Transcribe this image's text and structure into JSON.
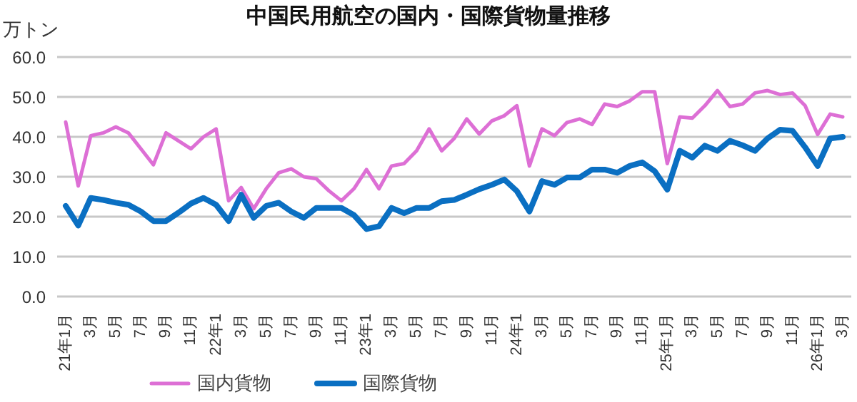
{
  "chart_data": {
    "type": "line",
    "title": "中国民用航空の国内・国際貨物量推移",
    "ylabel": "万トン",
    "categories": [
      "21年1月",
      null,
      "3月",
      null,
      "5月",
      null,
      "7月",
      null,
      "9月",
      null,
      "11月",
      null,
      "22年1",
      null,
      "3月",
      null,
      "5月",
      null,
      "7月",
      null,
      "9月",
      null,
      "11月",
      null,
      "23年1",
      null,
      "3月",
      null,
      "5月",
      null,
      "7月",
      null,
      "9月",
      null,
      "11月",
      null,
      "24年1",
      null,
      "3月",
      null,
      "5月",
      null,
      "7月",
      null,
      "9月",
      null,
      "11月",
      null,
      "25年1月",
      null,
      "3月",
      null,
      "5月",
      null,
      "7月",
      null,
      "9月",
      null,
      "11月",
      null,
      "26年1月",
      null,
      "3月"
    ],
    "series": [
      {
        "name": "国内貨物",
        "color": "#dd6fd5",
        "values": [
          43.7,
          27.7,
          40.3,
          41,
          42.5,
          41,
          37,
          33,
          41,
          39,
          37,
          40,
          42,
          24,
          27.3,
          22,
          27,
          31,
          32,
          30,
          29.5,
          26.5,
          24,
          27,
          31.8,
          27,
          32.7,
          33.3,
          36.5,
          42,
          36.5,
          39.6,
          44.5,
          40.7,
          44,
          45.3,
          47.8,
          32.7,
          42,
          40.3,
          43.6,
          44.5,
          43.1,
          48.2,
          47.6,
          49,
          51.3,
          51.3,
          33.3,
          45,
          44.7,
          47.8,
          51.6,
          47.6,
          48.2,
          51,
          51.6,
          50.6,
          51,
          47.8,
          40.6,
          45.7,
          45
        ]
      },
      {
        "name": "国際貨物",
        "color": "#0a6fc2",
        "values": [
          22.7,
          17.8,
          24.7,
          24.2,
          23.5,
          23,
          21.3,
          18.9,
          18.9,
          21,
          23.3,
          24.7,
          23,
          18.9,
          25.5,
          19.7,
          22.7,
          23.5,
          21.3,
          19.7,
          22.2,
          22.2,
          22.2,
          20.4,
          16.9,
          17.6,
          22.2,
          20.9,
          22.2,
          22.2,
          23.9,
          24.2,
          25.5,
          26.9,
          28,
          29.3,
          26.4,
          21.3,
          28.9,
          28,
          29.8,
          29.8,
          31.8,
          31.8,
          31,
          32.7,
          33.6,
          31.4,
          26.8,
          36.5,
          34.8,
          37.8,
          36.5,
          39,
          37.9,
          36.5,
          39.6,
          41.8,
          41.5,
          37.4,
          32.7,
          39.6,
          40
        ]
      }
    ],
    "ylim": [
      0,
      60
    ],
    "yticks": [
      {
        "value": 0,
        "label": "0.0"
      },
      {
        "value": 10,
        "label": "10.0"
      },
      {
        "value": 20,
        "label": "20.0"
      },
      {
        "value": 30,
        "label": "30.0"
      },
      {
        "value": 40,
        "label": "40.0"
      },
      {
        "value": 50,
        "label": "50.0"
      },
      {
        "value": 60,
        "label": "60.0"
      }
    ],
    "grid": "y",
    "legend": "bottom",
    "marker": "none",
    "line_style": "solid"
  }
}
